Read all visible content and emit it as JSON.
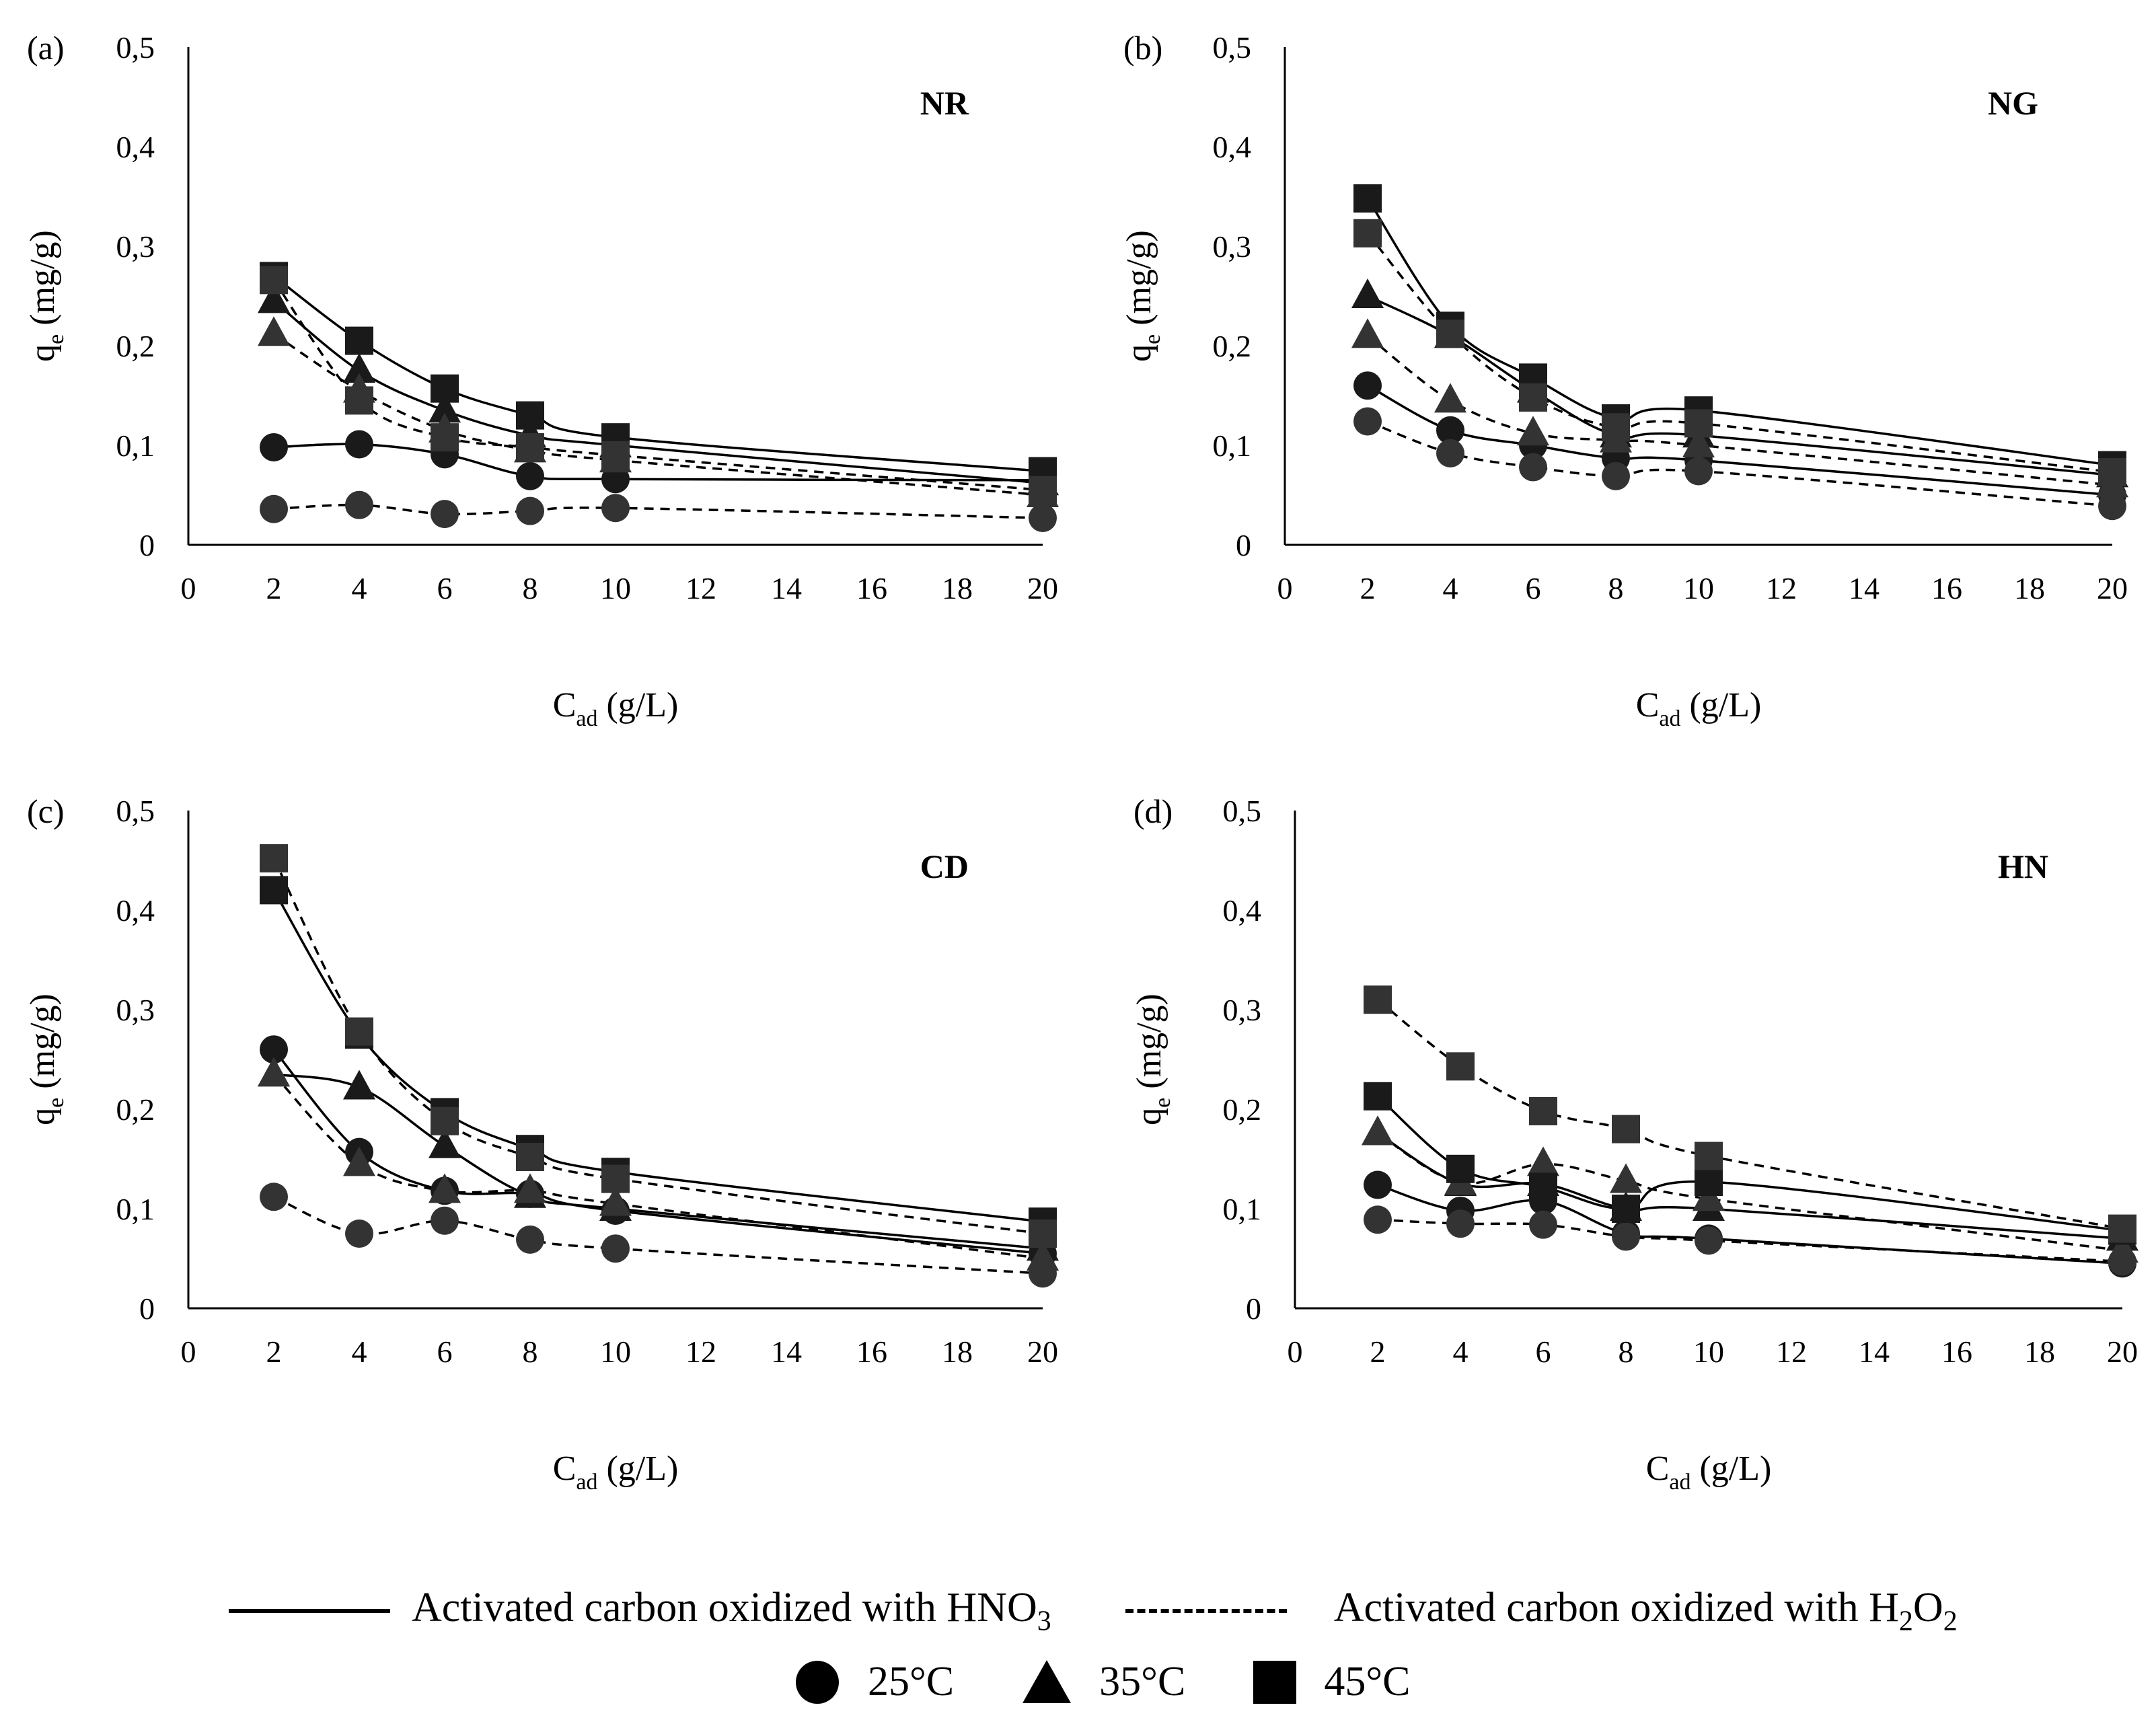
{
  "legend": {
    "line_hno3": "Activated carbon oxidized with HNO",
    "line_hno3_sub": "3",
    "line_h2o2": "Activated carbon oxidized with H",
    "line_h2o2_sub1": "2",
    "line_h2o2_mid": "O",
    "line_h2o2_sub2": "2",
    "t25": "25°C",
    "t35": "35°C",
    "t45": "45°C"
  },
  "colors": {
    "ink": "#000000",
    "marker_dark": "#1a1a1a",
    "marker_gray": "#333333"
  },
  "chart_data": [
    {
      "panel": "(a)",
      "name": "NR",
      "type": "line",
      "xlabel": "C",
      "xlabel_sub": "ad",
      "xlabel_unit": " (g/L)",
      "ylabel": "q",
      "ylabel_sub": "e",
      "ylabel_unit": " (mg/g)",
      "x": [
        2,
        4,
        6,
        8,
        10,
        20
      ],
      "xticks": [
        "0",
        "2",
        "4",
        "6",
        "8",
        "10",
        "12",
        "14",
        "16",
        "18",
        "20"
      ],
      "yticks": [
        "0",
        "0,1",
        "0,2",
        "0,3",
        "0,4",
        "0,5"
      ],
      "ylim": [
        0,
        0.5
      ],
      "series": [
        {
          "name": "25°C HNO3",
          "marker": "circle",
          "dash": false,
          "values": [
            0.098,
            0.101,
            0.091,
            0.069,
            0.066,
            0.065
          ]
        },
        {
          "name": "25°C H2O2",
          "marker": "circle",
          "dash": true,
          "values": [
            0.036,
            0.04,
            0.031,
            0.034,
            0.037,
            0.027
          ]
        },
        {
          "name": "35°C HNO3",
          "marker": "triangle",
          "dash": false,
          "values": [
            0.245,
            0.175,
            0.135,
            0.11,
            0.1,
            0.062
          ]
        },
        {
          "name": "35°C H2O2",
          "marker": "triangle",
          "dash": true,
          "values": [
            0.212,
            0.155,
            0.115,
            0.095,
            0.085,
            0.05
          ]
        },
        {
          "name": "45°C HNO3",
          "marker": "square",
          "dash": false,
          "values": [
            0.27,
            0.205,
            0.157,
            0.13,
            0.108,
            0.074
          ]
        },
        {
          "name": "45°C H2O2",
          "marker": "square",
          "dash": true,
          "values": [
            0.266,
            0.145,
            0.108,
            0.098,
            0.09,
            0.055
          ]
        }
      ]
    },
    {
      "panel": "(b)",
      "name": "NG",
      "type": "line",
      "xlabel": "C",
      "xlabel_sub": "ad",
      "xlabel_unit": " (g/L)",
      "ylabel": "q",
      "ylabel_sub": "e",
      "ylabel_unit": " (mg/g)",
      "x": [
        2,
        4,
        6,
        8,
        10,
        20
      ],
      "xticks": [
        "0",
        "2",
        "4",
        "6",
        "8",
        "10",
        "12",
        "14",
        "16",
        "18",
        "20"
      ],
      "yticks": [
        "0",
        "0,1",
        "0,2",
        "0,3",
        "0,4",
        "0,5"
      ],
      "ylim": [
        0,
        0.5
      ],
      "series": [
        {
          "name": "25°C HNO3",
          "marker": "circle",
          "dash": false,
          "values": [
            0.16,
            0.115,
            0.1,
            0.087,
            0.085,
            0.05
          ]
        },
        {
          "name": "25°C H2O2",
          "marker": "circle",
          "dash": true,
          "values": [
            0.124,
            0.092,
            0.078,
            0.069,
            0.074,
            0.039
          ]
        },
        {
          "name": "35°C HNO3",
          "marker": "triangle",
          "dash": false,
          "values": [
            0.25,
            0.21,
            0.155,
            0.11,
            0.11,
            0.07
          ]
        },
        {
          "name": "35°C H2O2",
          "marker": "triangle",
          "dash": true,
          "values": [
            0.21,
            0.145,
            0.112,
            0.105,
            0.1,
            0.06
          ]
        },
        {
          "name": "45°C HNO3",
          "marker": "square",
          "dash": false,
          "values": [
            0.348,
            0.22,
            0.168,
            0.127,
            0.135,
            0.08
          ]
        },
        {
          "name": "45°C H2O2",
          "marker": "square",
          "dash": true,
          "values": [
            0.313,
            0.212,
            0.148,
            0.118,
            0.122,
            0.073
          ]
        }
      ]
    },
    {
      "panel": "(c)",
      "name": "CD",
      "type": "line",
      "xlabel": "C",
      "xlabel_sub": "ad",
      "xlabel_unit": " (g/L)",
      "ylabel": "q",
      "ylabel_sub": "e",
      "ylabel_unit": " (mg/g)",
      "x": [
        2,
        4,
        6,
        8,
        10,
        20
      ],
      "xticks": [
        "0",
        "2",
        "4",
        "6",
        "8",
        "10",
        "12",
        "14",
        "16",
        "18",
        "20"
      ],
      "yticks": [
        "0",
        "0,1",
        "0,2",
        "0,3",
        "0,4",
        "0,5"
      ],
      "ylim": [
        0,
        0.5
      ],
      "series": [
        {
          "name": "25°C HNO3",
          "marker": "circle",
          "dash": false,
          "values": [
            0.26,
            0.157,
            0.118,
            0.115,
            0.098,
            0.055
          ]
        },
        {
          "name": "25°C H2O2",
          "marker": "circle",
          "dash": true,
          "values": [
            0.112,
            0.075,
            0.088,
            0.069,
            0.06,
            0.035
          ]
        },
        {
          "name": "35°C HNO3",
          "marker": "triangle",
          "dash": false,
          "values": [
            0.235,
            0.222,
            0.163,
            0.113,
            0.1,
            0.06
          ]
        },
        {
          "name": "35°C H2O2",
          "marker": "triangle",
          "dash": true,
          "values": [
            0.235,
            0.145,
            0.118,
            0.118,
            0.105,
            0.05
          ]
        },
        {
          "name": "45°C HNO3",
          "marker": "square",
          "dash": false,
          "values": [
            0.42,
            0.275,
            0.197,
            0.16,
            0.137,
            0.087
          ]
        },
        {
          "name": "45°C H2O2",
          "marker": "square",
          "dash": true,
          "values": [
            0.452,
            0.278,
            0.188,
            0.152,
            0.13,
            0.075
          ]
        }
      ]
    },
    {
      "panel": "(d)",
      "name": "HN",
      "type": "line",
      "xlabel": "C",
      "xlabel_sub": "ad",
      "xlabel_unit": " (g/L)",
      "ylabel": "q",
      "ylabel_sub": "e",
      "ylabel_unit": " (mg/g)",
      "x": [
        2,
        4,
        6,
        8,
        10,
        20
      ],
      "xticks": [
        "0",
        "2",
        "4",
        "6",
        "8",
        "10",
        "12",
        "14",
        "16",
        "18",
        "20"
      ],
      "yticks": [
        "0",
        "0,1",
        "0,2",
        "0,3",
        "0,4",
        "0,5"
      ],
      "ylim": [
        0,
        0.5
      ],
      "series": [
        {
          "name": "25°C HNO3",
          "marker": "circle",
          "dash": false,
          "values": [
            0.124,
            0.098,
            0.108,
            0.075,
            0.07,
            0.045
          ]
        },
        {
          "name": "25°C H2O2",
          "marker": "circle",
          "dash": true,
          "values": [
            0.089,
            0.085,
            0.084,
            0.072,
            0.068,
            0.047
          ]
        },
        {
          "name": "35°C HNO3",
          "marker": "triangle",
          "dash": false,
          "values": [
            0.176,
            0.125,
            0.125,
            0.1,
            0.1,
            0.07
          ]
        },
        {
          "name": "35°C H2O2",
          "marker": "triangle",
          "dash": true,
          "values": [
            0.176,
            0.126,
            0.145,
            0.128,
            0.11,
            0.058
          ]
        },
        {
          "name": "45°C HNO3",
          "marker": "square",
          "dash": false,
          "values": [
            0.213,
            0.14,
            0.122,
            0.1,
            0.127,
            0.078
          ]
        },
        {
          "name": "45°C H2O2",
          "marker": "square",
          "dash": true,
          "values": [
            0.31,
            0.243,
            0.198,
            0.18,
            0.153,
            0.08
          ]
        }
      ]
    }
  ]
}
